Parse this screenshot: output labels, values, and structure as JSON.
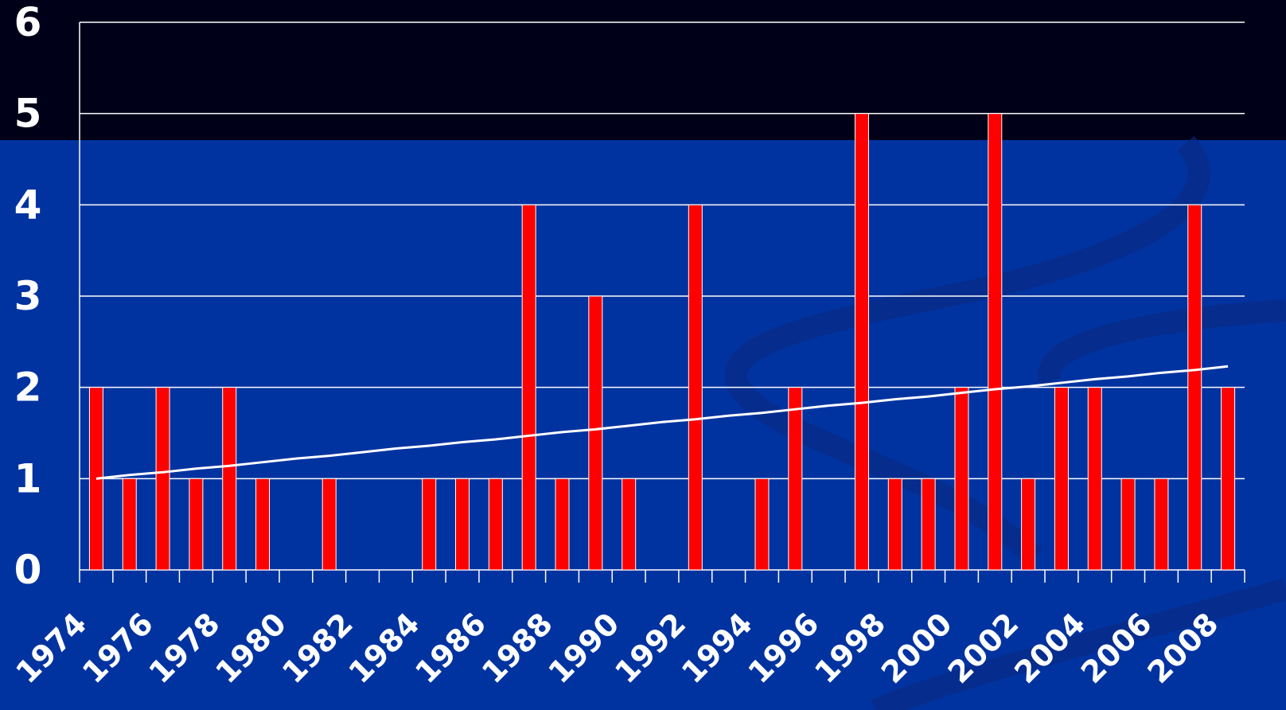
{
  "chart_data": {
    "type": "bar",
    "categories": [
      "1974",
      null,
      "1976",
      null,
      "1978",
      null,
      "1980",
      null,
      "1982",
      null,
      "1984",
      null,
      "1986",
      null,
      "1988",
      null,
      "1990",
      null,
      "1992",
      null,
      "1994",
      null,
      "1996",
      null,
      "1998",
      null,
      "2000",
      null,
      "2002",
      null,
      "2004",
      null,
      "2006",
      null,
      "2008"
    ],
    "series": [
      {
        "color": "#ff0000",
        "values": [
          2,
          1,
          2,
          1,
          2,
          1,
          0,
          1,
          0,
          0,
          1,
          1,
          1,
          4,
          1,
          3,
          1,
          0,
          4,
          0,
          1,
          2,
          0,
          5,
          1,
          1,
          2,
          5,
          1,
          2,
          2,
          1,
          1,
          4,
          2
        ]
      },
      {
        "type": "line",
        "color": "#ffffff",
        "values": [
          1.0,
          1.04,
          1.07,
          1.11,
          1.14,
          1.18,
          1.22,
          1.25,
          1.29,
          1.33,
          1.36,
          1.4,
          1.43,
          1.47,
          1.51,
          1.54,
          1.58,
          1.62,
          1.65,
          1.69,
          1.72,
          1.76,
          1.8,
          1.83,
          1.87,
          1.9,
          1.94,
          1.98,
          2.01,
          2.05,
          2.09,
          2.12,
          2.16,
          2.19,
          2.23
        ]
      }
    ],
    "ylim": [
      0,
      6
    ],
    "yticks": [
      0,
      1,
      2,
      3,
      4,
      5,
      6
    ],
    "grid": true
  }
}
